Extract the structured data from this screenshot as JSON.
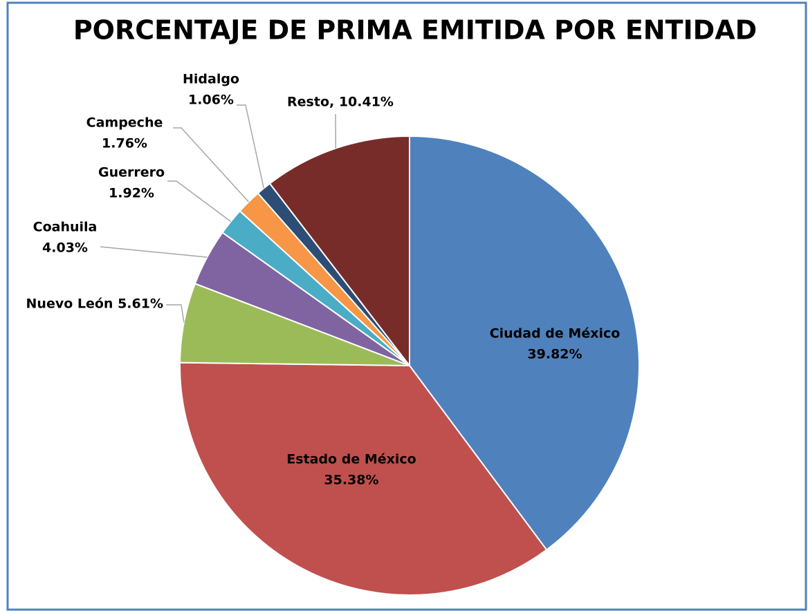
{
  "chart_data": {
    "type": "pie",
    "title": "PORCENTAJE DE PRIMA EMITIDA POR ENTIDAD",
    "labels": [
      [
        "Ciudad de México",
        "39.82%"
      ],
      [
        "Estado de México",
        "35.38%"
      ],
      [
        "Nuevo León 5.61%"
      ],
      [
        "Coahuila",
        "4.03%"
      ],
      [
        "Guerrero",
        "1.92%"
      ],
      [
        "Campeche",
        "1.76%"
      ],
      [
        "Hidalgo",
        "1.06%"
      ],
      [
        "Resto, 10.41%"
      ]
    ],
    "values": [
      39.82,
      35.38,
      5.61,
      4.03,
      1.92,
      1.76,
      1.06,
      10.41
    ],
    "colors": [
      "#4f81bd",
      "#c0504d",
      "#9bbb59",
      "#8064a2",
      "#4bacc6",
      "#f79646",
      "#2c4d75",
      "#772c2a"
    ]
  }
}
